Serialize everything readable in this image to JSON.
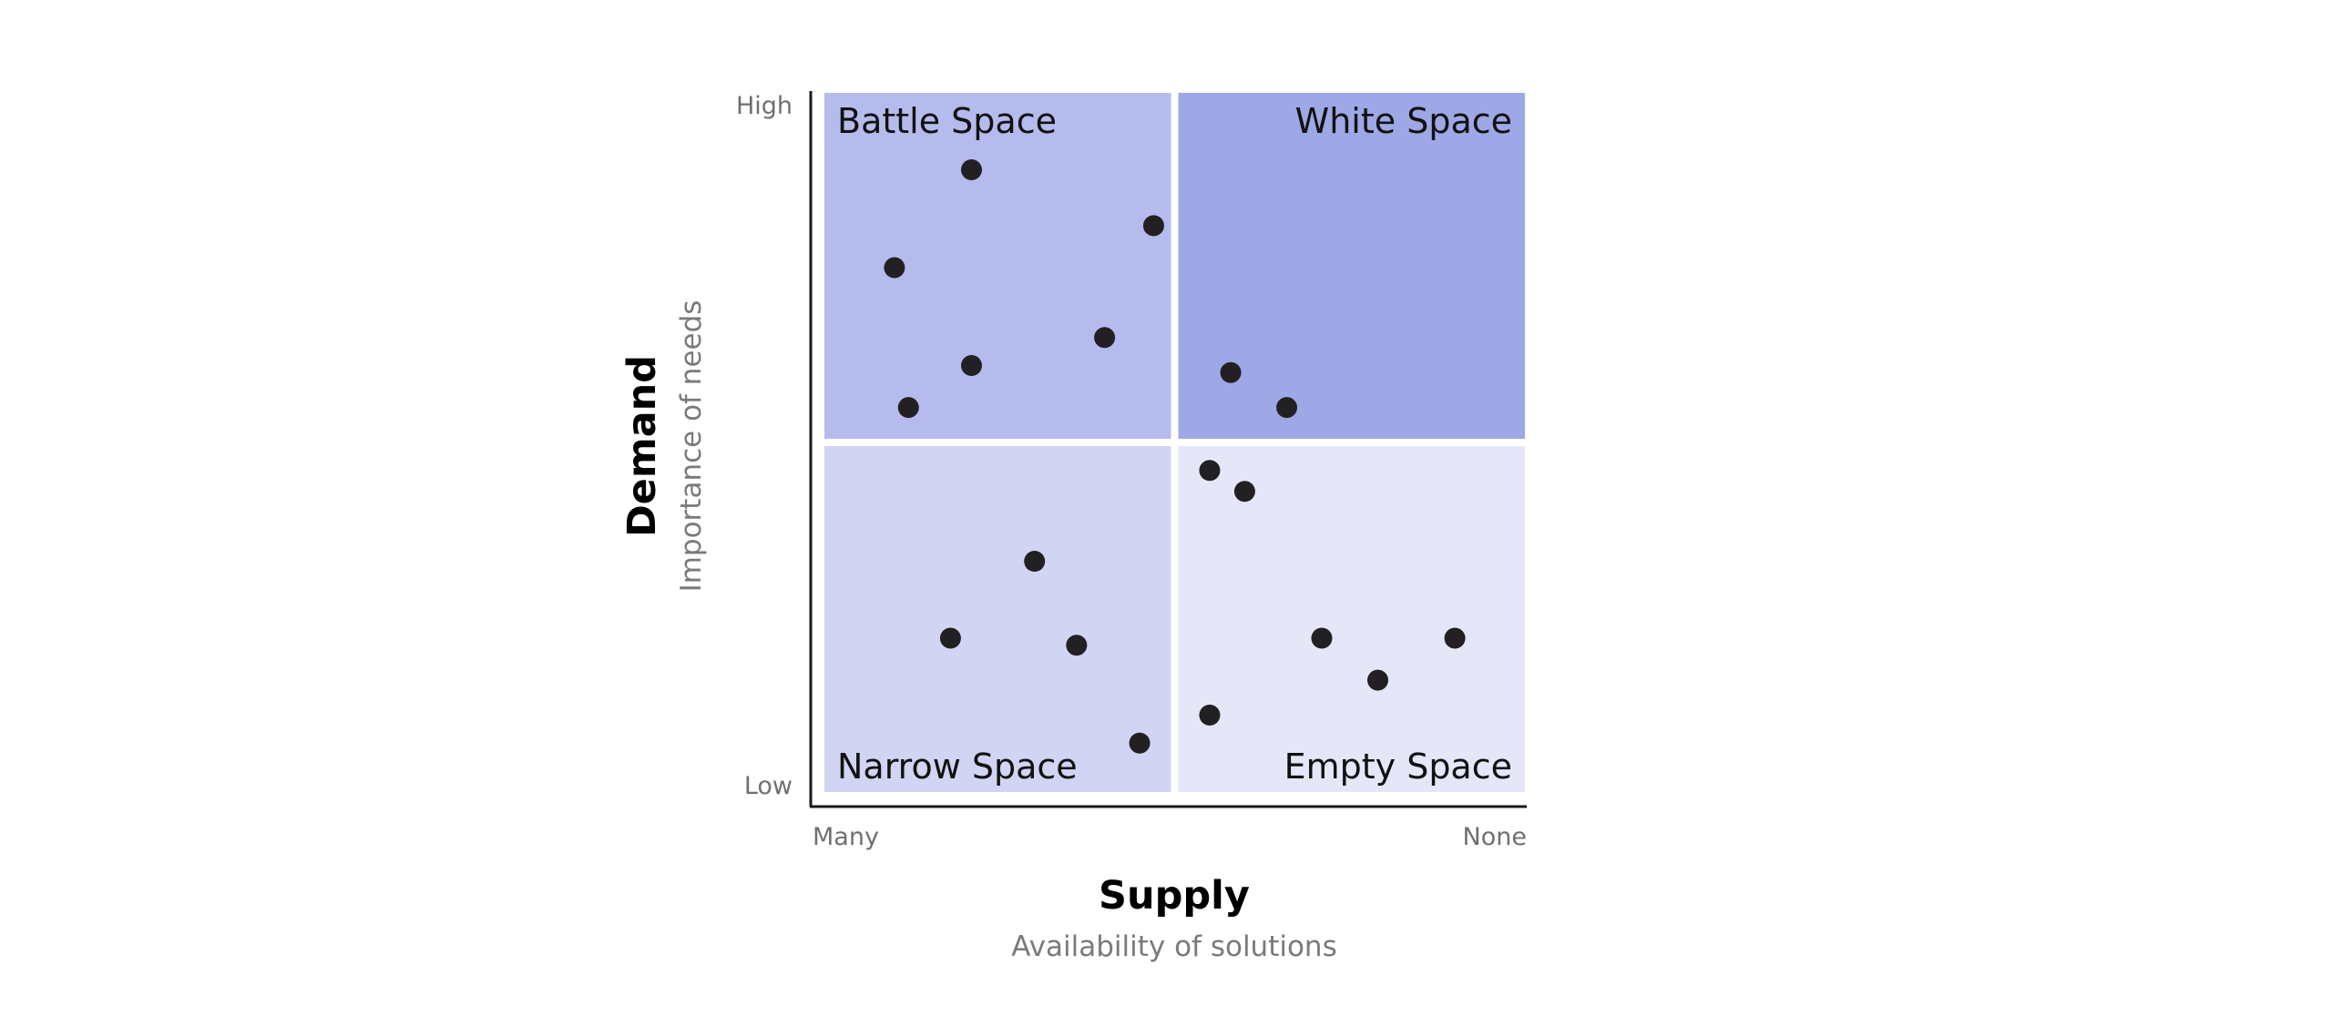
{
  "chart_data": {
    "type": "scatter",
    "x_axis": {
      "title": "Supply",
      "subtitle": "Availability of solutions",
      "min_label": "Many",
      "max_label": "None",
      "range": [
        0,
        1
      ]
    },
    "y_axis": {
      "title": "Demand",
      "subtitle": "Importance of needs",
      "min_label": "Low",
      "max_label": "High",
      "range": [
        0,
        1
      ]
    },
    "quadrants": [
      {
        "key": "top_left",
        "label": "Battle Space",
        "color": "#b6bbed"
      },
      {
        "key": "top_right",
        "label": "White Space",
        "color": "#9ea8e6"
      },
      {
        "key": "bottom_left",
        "label": "Narrow Space",
        "color": "#d1d4f2"
      },
      {
        "key": "bottom_right",
        "label": "Empty Space",
        "color": "#e5e7f8"
      }
    ],
    "point_color": "#222022",
    "points": [
      {
        "x": 0.21,
        "y": 0.89
      },
      {
        "x": 0.47,
        "y": 0.81
      },
      {
        "x": 0.1,
        "y": 0.75
      },
      {
        "x": 0.4,
        "y": 0.65
      },
      {
        "x": 0.21,
        "y": 0.61
      },
      {
        "x": 0.12,
        "y": 0.55
      },
      {
        "x": 0.58,
        "y": 0.6
      },
      {
        "x": 0.66,
        "y": 0.55
      },
      {
        "x": 0.55,
        "y": 0.46
      },
      {
        "x": 0.6,
        "y": 0.43
      },
      {
        "x": 0.3,
        "y": 0.33
      },
      {
        "x": 0.18,
        "y": 0.22
      },
      {
        "x": 0.36,
        "y": 0.21
      },
      {
        "x": 0.45,
        "y": 0.07
      },
      {
        "x": 0.71,
        "y": 0.22
      },
      {
        "x": 0.79,
        "y": 0.16
      },
      {
        "x": 0.9,
        "y": 0.22
      },
      {
        "x": 0.55,
        "y": 0.11
      }
    ],
    "grid": false,
    "legend": "none"
  }
}
